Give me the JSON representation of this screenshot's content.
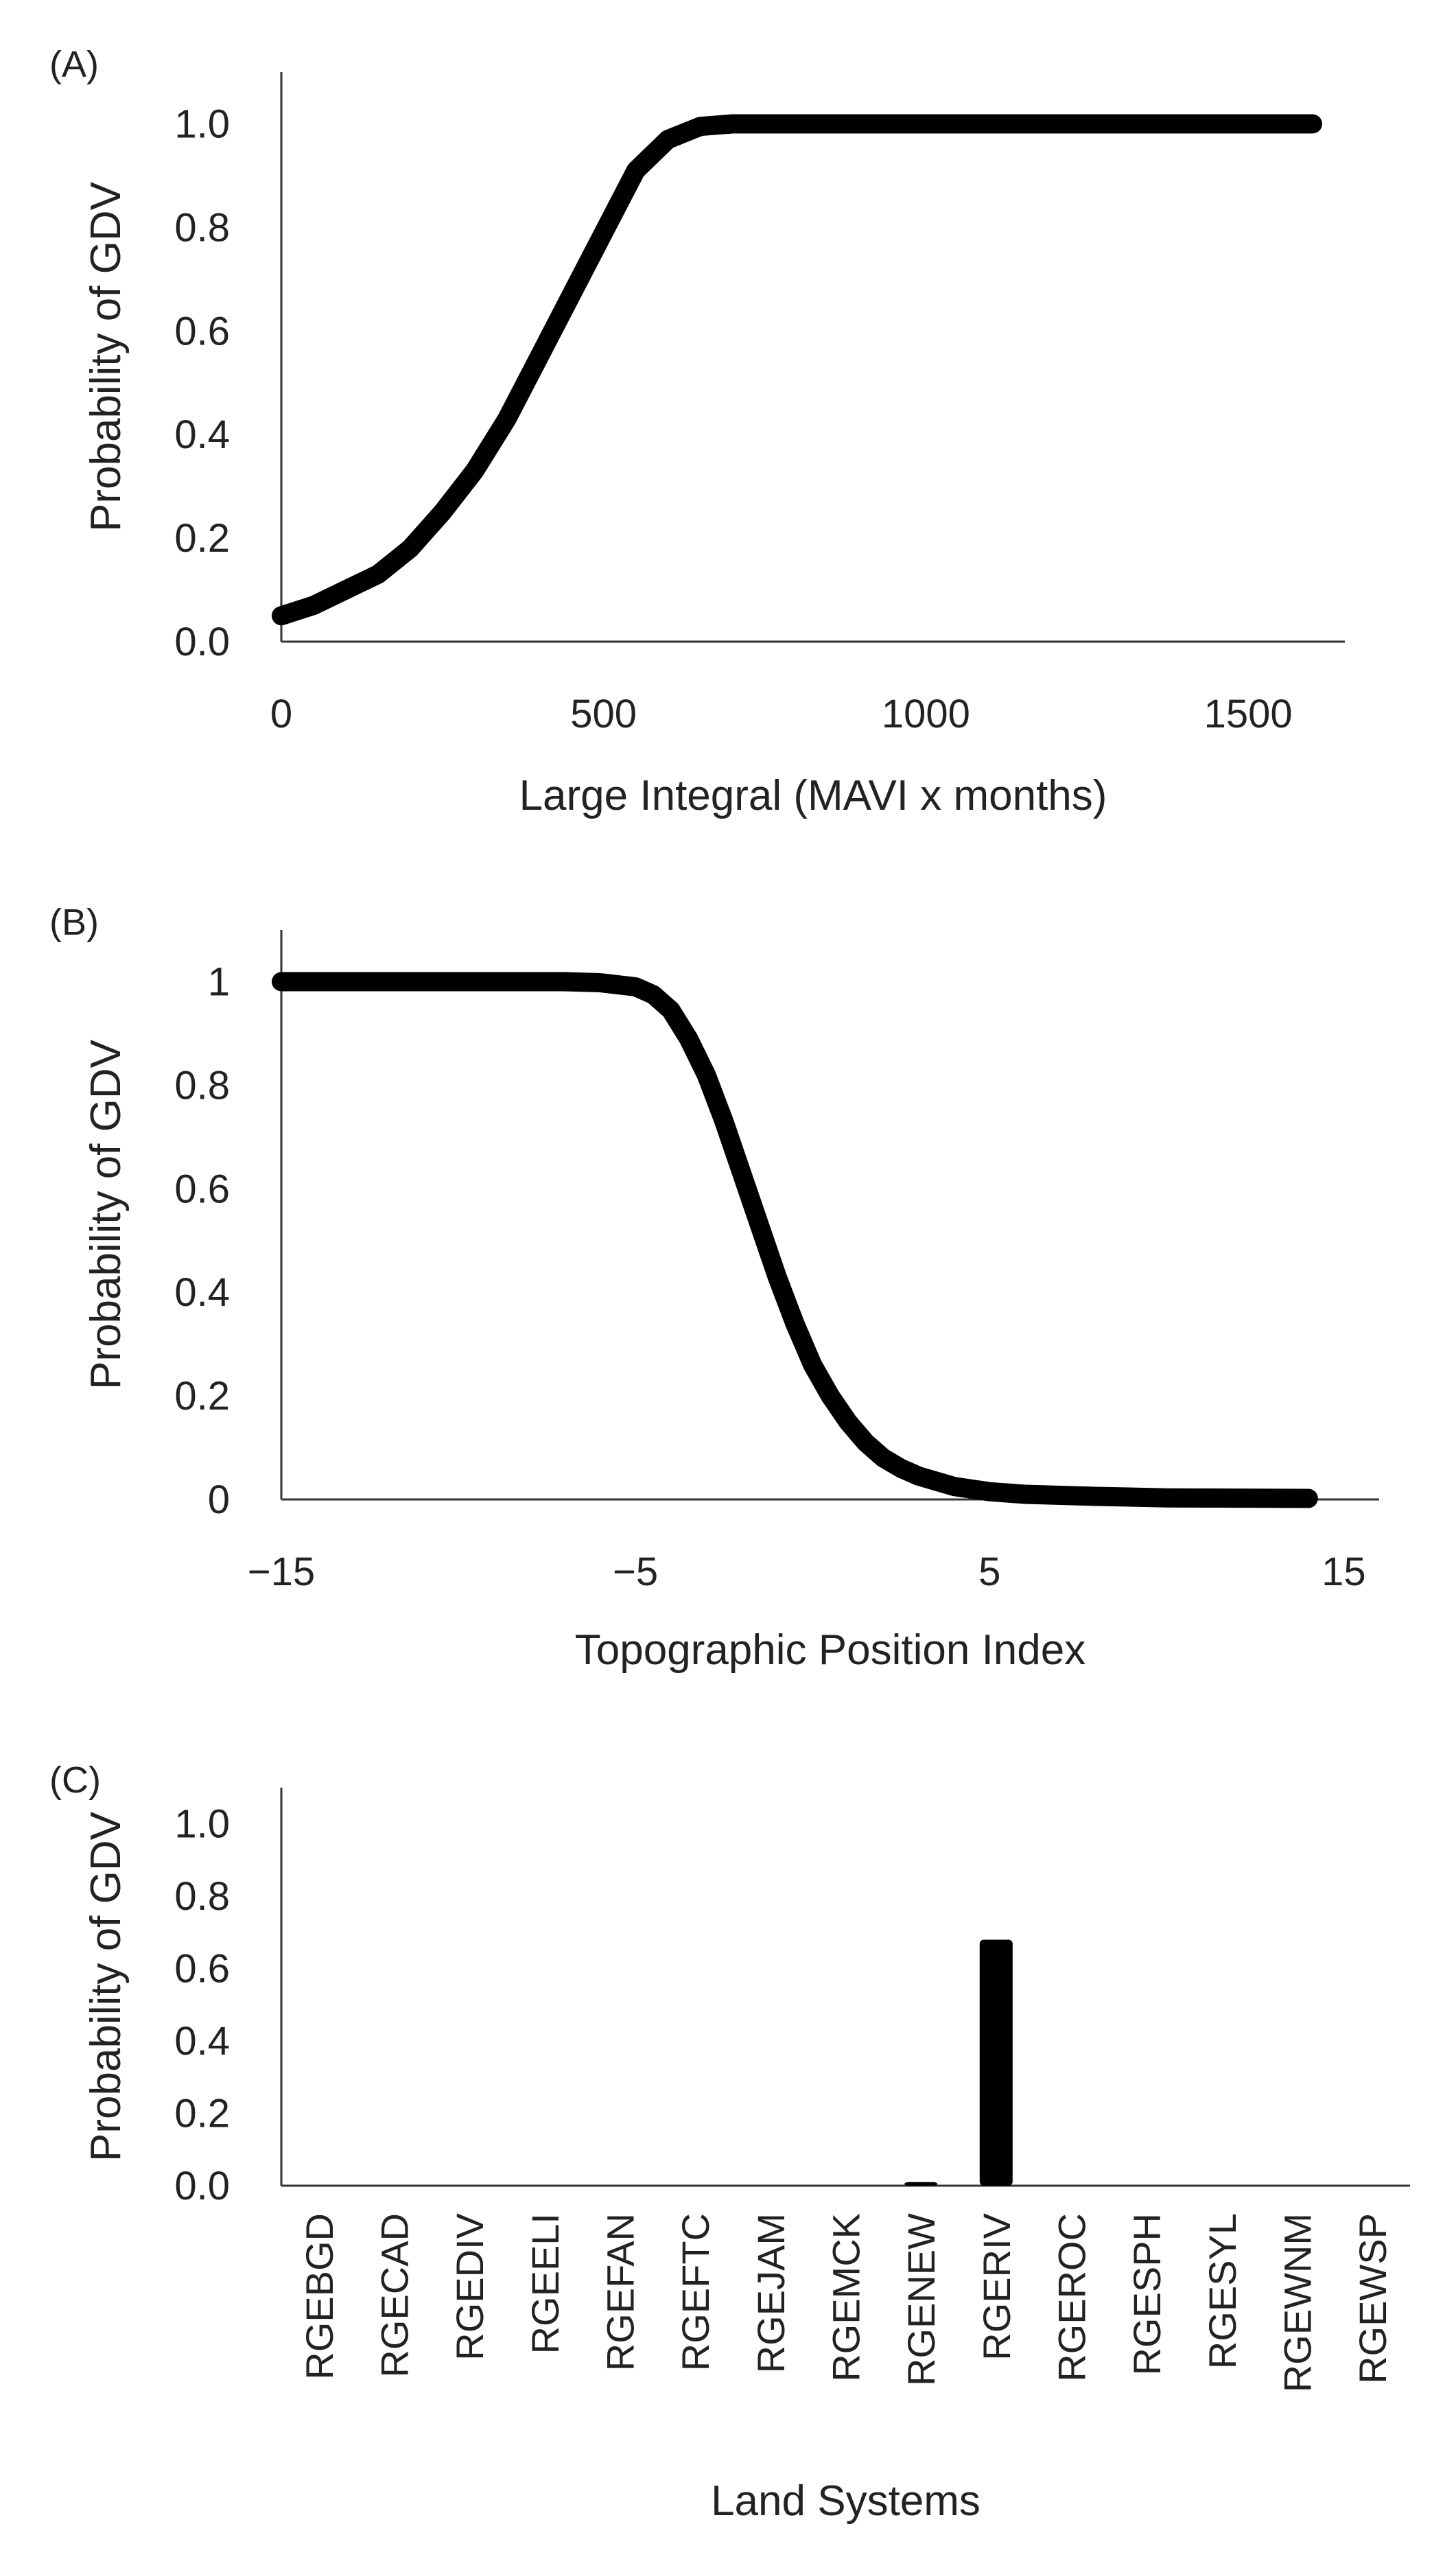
{
  "chart_data": [
    {
      "type": "line",
      "panel_label": "(A)",
      "xlabel": "Large Integral (MAVI x months)",
      "ylabel": "Probability of GDV",
      "xlim": [
        0,
        1650
      ],
      "ylim": [
        0,
        1.1
      ],
      "xticks": [
        0,
        500,
        1000,
        1500
      ],
      "xtick_labels": [
        "0",
        "500",
        "1000",
        "1500"
      ],
      "yticks": [
        0,
        0.2,
        0.4,
        0.6,
        0.8,
        1.0
      ],
      "ytick_labels": [
        "0.0",
        "0.2",
        "0.4",
        "0.6",
        "0.8",
        "1.0"
      ],
      "series": [
        {
          "name": "Probability of GDV",
          "x": [
            0,
            50,
            100,
            150,
            200,
            250,
            300,
            350,
            400,
            450,
            500,
            550,
            600,
            650,
            700,
            750,
            800,
            900,
            1000,
            1100,
            1200,
            1300,
            1400,
            1500,
            1600
          ],
          "y": [
            0.05,
            0.07,
            0.1,
            0.13,
            0.18,
            0.25,
            0.33,
            0.43,
            0.55,
            0.67,
            0.79,
            0.91,
            0.97,
            0.995,
            1.0,
            1.0,
            1.0,
            1.0,
            1.0,
            1.0,
            1.0,
            1.0,
            1.0,
            1.0,
            1.0
          ]
        }
      ]
    },
    {
      "type": "line",
      "panel_label": "(B)",
      "xlabel": "Topographic Position Index",
      "ylabel": "Probability of GDV",
      "xlim": [
        -15,
        16
      ],
      "ylim": [
        0,
        1.1
      ],
      "xticks": [
        -15,
        -5,
        5,
        15
      ],
      "xtick_labels": [
        "−15",
        "−5",
        "5",
        "15"
      ],
      "yticks": [
        0,
        0.2,
        0.4,
        0.6,
        0.8,
        1
      ],
      "ytick_labels": [
        "0",
        "0.2",
        "0.4",
        "0.6",
        "0.8",
        "1"
      ],
      "series": [
        {
          "name": "Probability of GDV",
          "x": [
            -15,
            -12,
            -9,
            -7,
            -6,
            -5,
            -4.5,
            -4,
            -3.5,
            -3,
            -2.5,
            -2,
            -1.5,
            -1,
            -0.5,
            0,
            0.5,
            1,
            1.5,
            2,
            2.5,
            3,
            3.5,
            4,
            5,
            6,
            8,
            10,
            14
          ],
          "y": [
            1.0,
            1.0,
            1.0,
            1.0,
            0.998,
            0.99,
            0.975,
            0.945,
            0.89,
            0.82,
            0.73,
            0.63,
            0.53,
            0.43,
            0.34,
            0.26,
            0.2,
            0.15,
            0.11,
            0.08,
            0.06,
            0.045,
            0.035,
            0.025,
            0.015,
            0.01,
            0.006,
            0.003,
            0.002
          ]
        }
      ]
    },
    {
      "type": "bar",
      "panel_label": "(C)",
      "xlabel": "Land Systems",
      "ylabel": "Probability of GDV",
      "ylim": [
        0,
        1.1
      ],
      "yticks": [
        0,
        0.2,
        0.4,
        0.6,
        0.8,
        1.0
      ],
      "ytick_labels": [
        "0.0",
        "0.2",
        "0.4",
        "0.6",
        "0.8",
        "1.0"
      ],
      "categories": [
        "RGEBGD",
        "RGECAD",
        "RGEDIV",
        "RGEELI",
        "RGEFAN",
        "RGEFTC",
        "RGEJAM",
        "RGEMCK",
        "RGENEW",
        "RGERIV",
        "RGEROC",
        "RGESPH",
        "RGESYL",
        "RGEWNM",
        "RGEWSP"
      ],
      "values": [
        0,
        0,
        0,
        0,
        0,
        0,
        0,
        0,
        0.01,
        0.68,
        0,
        0,
        0,
        0,
        0
      ]
    }
  ],
  "colors": {
    "series": "#000000",
    "axis": "#333333",
    "text": "#222222",
    "background": "#ffffff"
  }
}
